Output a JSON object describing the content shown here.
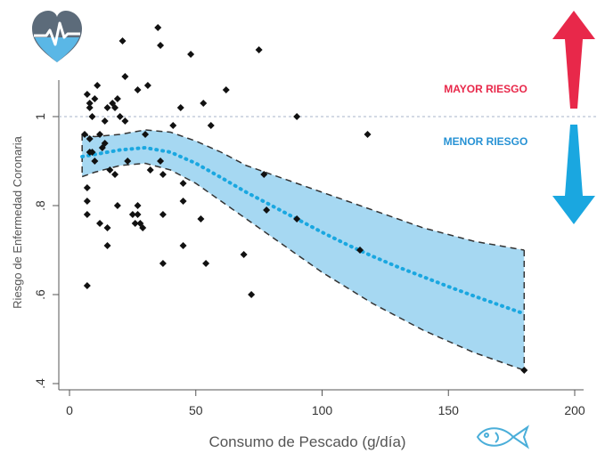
{
  "chart_data": {
    "type": "scatter",
    "xlabel": "Consumo de Pescado (g/día)",
    "ylabel": "Riesgo de Enfermedad Coronaria",
    "xlim": [
      0,
      200
    ],
    "ylim": [
      0.4,
      1.1
    ],
    "x_ticks": [
      "0",
      "50",
      "100",
      "150",
      "200"
    ],
    "y_ticks": [
      ".4",
      ".6",
      ".8",
      "1"
    ],
    "y_tick_values": [
      0.4,
      0.6,
      0.8,
      1.0
    ],
    "x_tick_values": [
      0,
      50,
      100,
      150,
      200
    ],
    "reference_line": 1.0,
    "annotations": {
      "higher_risk": "MAYOR RIESGO",
      "lower_risk": "MENOR RIESGO"
    },
    "points": [
      [
        6,
        0.96
      ],
      [
        7,
        0.84
      ],
      [
        7,
        0.81
      ],
      [
        7,
        0.78
      ],
      [
        7,
        0.62
      ],
      [
        7,
        1.05
      ],
      [
        8,
        1.02
      ],
      [
        8,
        1.03
      ],
      [
        8,
        0.95
      ],
      [
        8,
        0.92
      ],
      [
        9,
        1.0
      ],
      [
        9,
        0.92
      ],
      [
        10,
        1.04
      ],
      [
        10,
        0.9
      ],
      [
        11,
        1.07
      ],
      [
        12,
        0.96
      ],
      [
        12,
        0.76
      ],
      [
        13,
        0.93
      ],
      [
        14,
        0.94
      ],
      [
        14,
        0.99
      ],
      [
        15,
        1.02
      ],
      [
        15,
        0.75
      ],
      [
        15,
        0.71
      ],
      [
        16,
        0.88
      ],
      [
        17,
        1.03
      ],
      [
        18,
        1.02
      ],
      [
        18,
        0.87
      ],
      [
        19,
        1.04
      ],
      [
        19,
        0.8
      ],
      [
        20,
        1.0
      ],
      [
        21,
        1.17
      ],
      [
        22,
        1.09
      ],
      [
        22,
        0.99
      ],
      [
        23,
        0.9
      ],
      [
        25,
        0.78
      ],
      [
        26,
        0.76
      ],
      [
        27,
        1.06
      ],
      [
        27,
        0.8
      ],
      [
        27,
        0.78
      ],
      [
        28,
        0.76
      ],
      [
        29,
        0.75
      ],
      [
        31,
        1.07
      ],
      [
        30,
        0.96
      ],
      [
        32,
        0.88
      ],
      [
        35,
        1.2
      ],
      [
        36,
        0.9
      ],
      [
        36,
        1.16
      ],
      [
        37,
        0.87
      ],
      [
        37,
        0.78
      ],
      [
        37,
        0.67
      ],
      [
        41,
        0.98
      ],
      [
        44,
        1.02
      ],
      [
        45,
        0.85
      ],
      [
        45,
        0.81
      ],
      [
        45,
        0.71
      ],
      [
        48,
        1.14
      ],
      [
        52,
        0.77
      ],
      [
        53,
        1.03
      ],
      [
        54,
        0.67
      ],
      [
        56,
        0.98
      ],
      [
        62,
        1.06
      ],
      [
        69,
        0.69
      ],
      [
        72,
        0.6
      ],
      [
        75,
        1.15
      ],
      [
        77,
        0.87
      ],
      [
        78,
        0.79
      ],
      [
        90,
        1.0
      ],
      [
        90,
        0.77
      ],
      [
        118,
        0.96
      ],
      [
        115,
        0.7
      ],
      [
        180,
        0.43
      ]
    ],
    "fit_x": [
      5,
      10,
      20,
      30,
      40,
      50,
      60,
      70,
      80,
      90,
      100,
      110,
      120,
      130,
      140,
      150,
      160,
      170,
      180
    ],
    "fit_y": [
      0.91,
      0.915,
      0.925,
      0.93,
      0.92,
      0.895,
      0.863,
      0.83,
      0.8,
      0.77,
      0.74,
      0.712,
      0.686,
      0.662,
      0.64,
      0.618,
      0.597,
      0.577,
      0.557
    ],
    "ci_lower": [
      0.865,
      0.875,
      0.89,
      0.895,
      0.88,
      0.85,
      0.81,
      0.77,
      0.73,
      0.69,
      0.65,
      0.615,
      0.58,
      0.55,
      0.52,
      0.495,
      0.47,
      0.45,
      0.43
    ],
    "ci_upper": [
      0.96,
      0.955,
      0.96,
      0.97,
      0.965,
      0.945,
      0.92,
      0.89,
      0.87,
      0.85,
      0.83,
      0.81,
      0.79,
      0.77,
      0.75,
      0.735,
      0.72,
      0.71,
      0.7
    ],
    "colors": {
      "points": "#111111",
      "fit": "#1aa7e0",
      "band": "#a6d8f2",
      "band_edge": "#333333",
      "reference_line": "#a7b5c8",
      "higher_risk": "#e8284a",
      "lower_risk": "#2792d4",
      "heart": "#5c6b7a",
      "heart_bottom": "#5ab7e6",
      "fish": "#4aaed9"
    },
    "icons": [
      "heart-pulse-icon",
      "fish-icon",
      "up-arrow-icon",
      "down-arrow-icon"
    ]
  }
}
